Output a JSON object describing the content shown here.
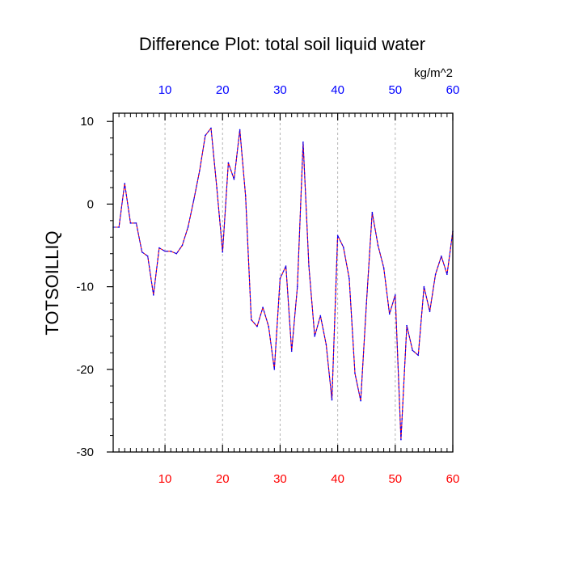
{
  "chart_data": {
    "type": "line",
    "title": "Difference Plot: total soil liquid water",
    "units": "kg/m^2",
    "ylabel": "TOTSOILLIQ",
    "xlim": [
      1,
      60
    ],
    "ylim": [
      -30,
      11
    ],
    "yticks": [
      10,
      0,
      -10,
      -20,
      -30
    ],
    "yticks_labels": [
      "10",
      "0",
      "-10",
      "-20",
      "-30"
    ],
    "xticks": [
      10,
      20,
      30,
      40,
      50,
      60
    ],
    "xticks_labels_top": [
      "10",
      "20",
      "30",
      "40",
      "50",
      "60"
    ],
    "xticks_labels_bottom": [
      "10",
      "20",
      "30",
      "40",
      "50",
      "60"
    ],
    "grid": "vertical-dashed",
    "colors": {
      "top_axis_labels": "#0000ff",
      "bottom_axis_labels": "#ff0000",
      "line_a": "#ff0000",
      "line_b": "#0000ff"
    },
    "series": [
      {
        "x": [
          1,
          2,
          3,
          4,
          5,
          6,
          7,
          8,
          9,
          10,
          11,
          12,
          13,
          14,
          15,
          16,
          17,
          18,
          19,
          20,
          21,
          22,
          23,
          24,
          25,
          26,
          27,
          28,
          29,
          30,
          31,
          32,
          33,
          34,
          35,
          36,
          37,
          38,
          39,
          40,
          41,
          42,
          43,
          44,
          45,
          46,
          47,
          48,
          49,
          50,
          51,
          52,
          53,
          54,
          55,
          56,
          57,
          58,
          59,
          60
        ],
        "y": [
          -2.8,
          -2.8,
          2.5,
          -2.3,
          -2.3,
          -5.8,
          -6.3,
          -11.0,
          -5.3,
          -5.7,
          -5.7,
          -6.0,
          -5.0,
          -2.8,
          0.5,
          4.0,
          8.3,
          9.2,
          2.0,
          -5.8,
          5.0,
          3.0,
          9.0,
          1.0,
          -14.0,
          -14.8,
          -12.5,
          -14.8,
          -20.0,
          -9.0,
          -7.5,
          -17.8,
          -10.0,
          7.5,
          -7.5,
          -16.0,
          -13.5,
          -17.0,
          -23.7,
          -3.8,
          -5.2,
          -9.0,
          -20.5,
          -23.8,
          -12.0,
          -1.0,
          -5.0,
          -7.7,
          -13.3,
          -11.0,
          -28.5,
          -14.7,
          -17.7,
          -18.3,
          -10.0,
          -13.0,
          -8.5,
          -6.3,
          -8.5,
          -3.3
        ]
      }
    ]
  }
}
